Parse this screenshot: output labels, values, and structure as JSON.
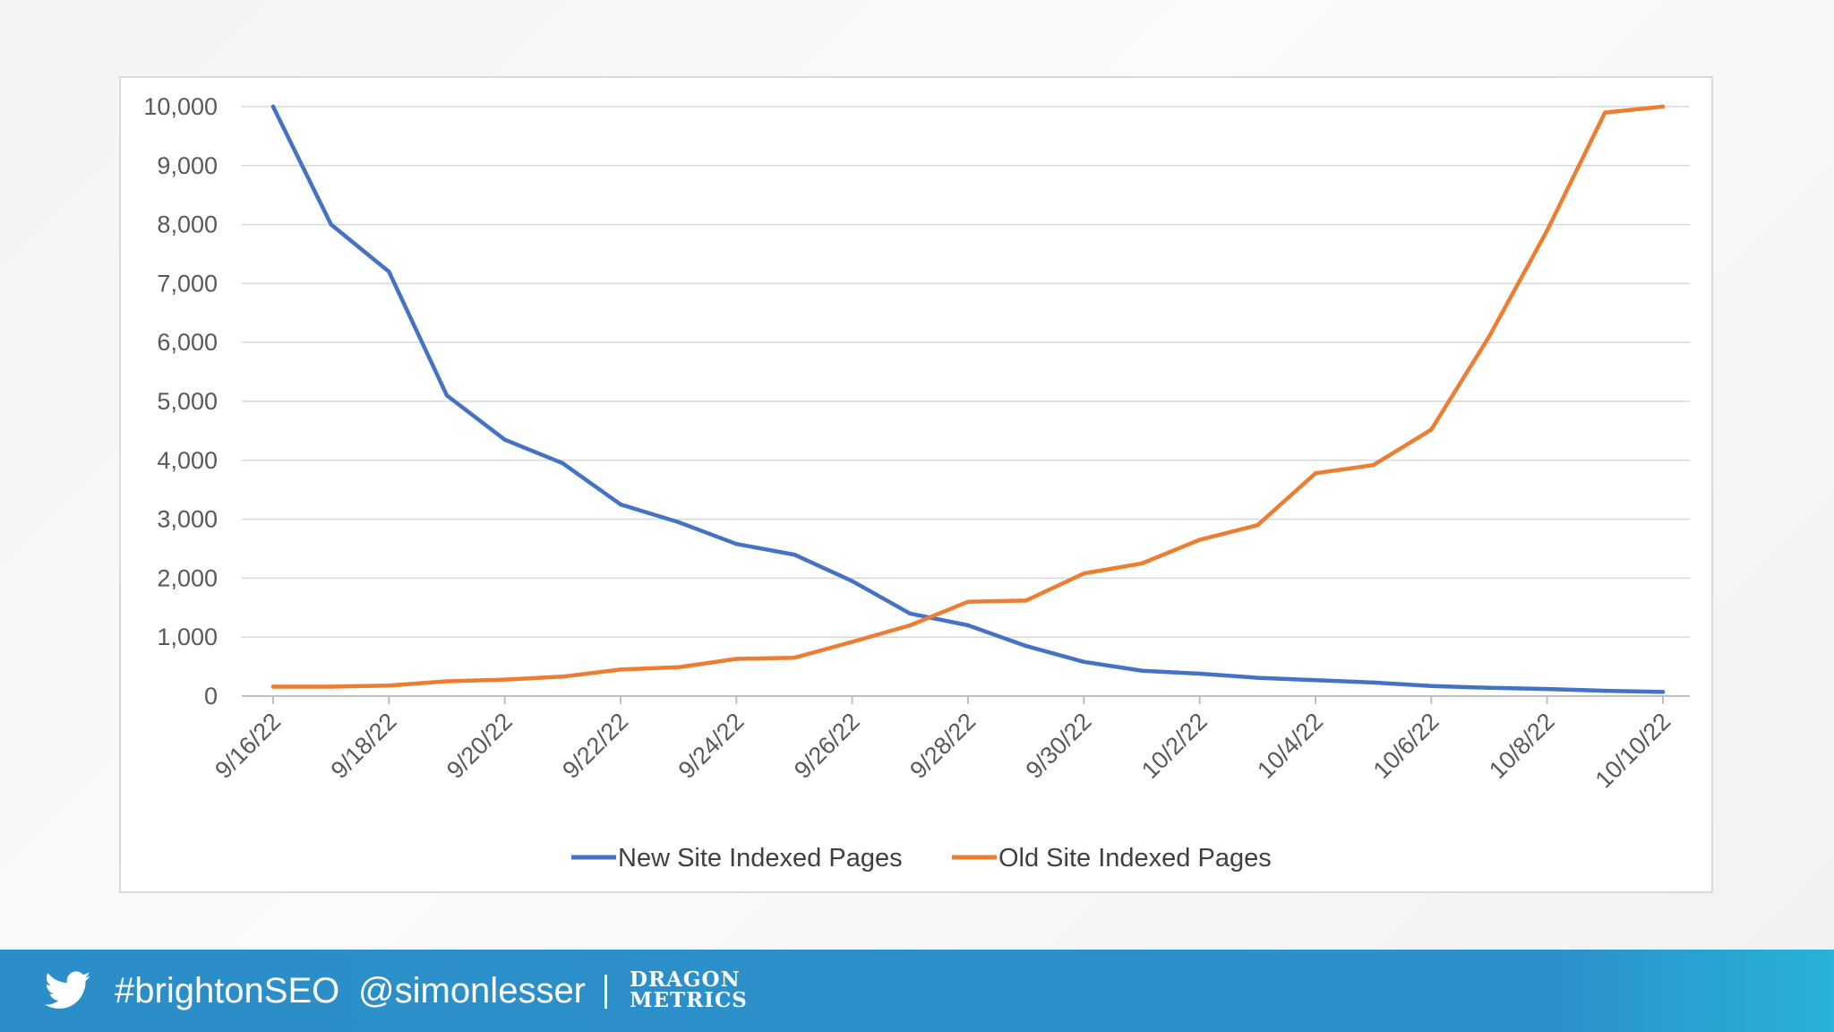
{
  "chart_data": {
    "type": "line",
    "title": "",
    "xlabel": "",
    "ylabel": "",
    "ylim": [
      0,
      10000
    ],
    "y_ticks": [
      0,
      1000,
      2000,
      3000,
      4000,
      5000,
      6000,
      7000,
      8000,
      9000,
      10000
    ],
    "y_tick_labels": [
      "0",
      "1,000",
      "2,000",
      "3,000",
      "4,000",
      "5,000",
      "6,000",
      "7,000",
      "8,000",
      "9,000",
      "10,000"
    ],
    "categories": [
      "9/16/22",
      "9/17/22",
      "9/18/22",
      "9/19/22",
      "9/20/22",
      "9/21/22",
      "9/22/22",
      "9/23/22",
      "9/24/22",
      "9/25/22",
      "9/26/22",
      "9/27/22",
      "9/28/22",
      "9/29/22",
      "9/30/22",
      "10/1/22",
      "10/2/22",
      "10/3/22",
      "10/4/22",
      "10/5/22",
      "10/6/22",
      "10/7/22",
      "10/8/22",
      "10/9/22",
      "10/10/22"
    ],
    "x_tick_labels": [
      "9/16/22",
      "9/18/22",
      "9/20/22",
      "9/22/22",
      "9/24/22",
      "9/26/22",
      "9/28/22",
      "9/30/22",
      "10/2/22",
      "10/4/22",
      "10/6/22",
      "10/8/22",
      "10/10/22"
    ],
    "series": [
      {
        "name": "New Site Indexed Pages",
        "color": "#4472c4",
        "values": [
          10000,
          8000,
          7200,
          5100,
          4350,
          3950,
          3250,
          2950,
          2580,
          2400,
          1950,
          1400,
          1200,
          850,
          580,
          430,
          380,
          310,
          270,
          230,
          170,
          140,
          120,
          90,
          70
        ]
      },
      {
        "name": "Old Site Indexed Pages",
        "color": "#ed7d31",
        "values": [
          160,
          160,
          180,
          250,
          280,
          330,
          450,
          490,
          630,
          650,
          920,
          1200,
          1600,
          1620,
          2080,
          2250,
          2650,
          2900,
          3780,
          3920,
          4520,
          6100,
          7900,
          9900,
          10000
        ]
      }
    ],
    "legend_position": "bottom",
    "grid": true
  },
  "footer": {
    "hashtag": "#brightonSEO",
    "handle": "@simonlesser",
    "logo_line1": "DRAGON",
    "logo_line2": "METRICS",
    "bird_icon": "twitter-bird-icon",
    "bg_color": "#2b8ec9"
  }
}
